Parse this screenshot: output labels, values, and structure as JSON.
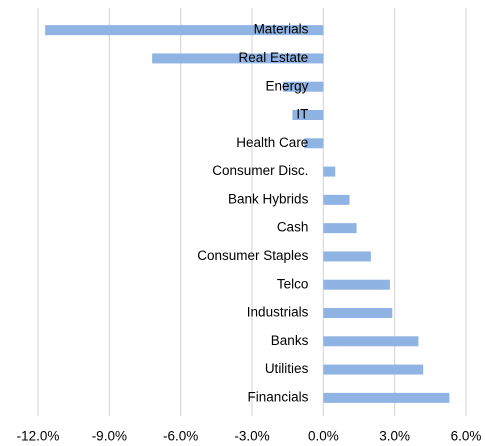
{
  "chart_data": {
    "type": "barh",
    "categories": [
      "Materials",
      "Real Estate",
      "Energy",
      "IT",
      "Health Care",
      "Consumer Disc.",
      "Bank Hybrids",
      "Cash",
      "Consumer Staples",
      "Telco",
      "Industrials",
      "Banks",
      "Utilities",
      "Financials"
    ],
    "values": [
      -11.7,
      -7.2,
      -1.7,
      -1.3,
      -0.8,
      0.5,
      1.1,
      1.4,
      2.0,
      2.8,
      2.9,
      4.0,
      4.2,
      5.3
    ],
    "color": "#8fb4e3",
    "xlim": [
      -12,
      6
    ],
    "xticks": [
      {
        "value": -12,
        "label": "-12.0%"
      },
      {
        "value": -9,
        "label": "-9.0%"
      },
      {
        "value": -6,
        "label": "-6.0%"
      },
      {
        "value": -3,
        "label": "-3.0%"
      },
      {
        "value": 0,
        "label": "0.0%"
      },
      {
        "value": 3,
        "label": "3.0%"
      },
      {
        "value": 6,
        "label": "6.0%"
      }
    ],
    "grid": true
  }
}
